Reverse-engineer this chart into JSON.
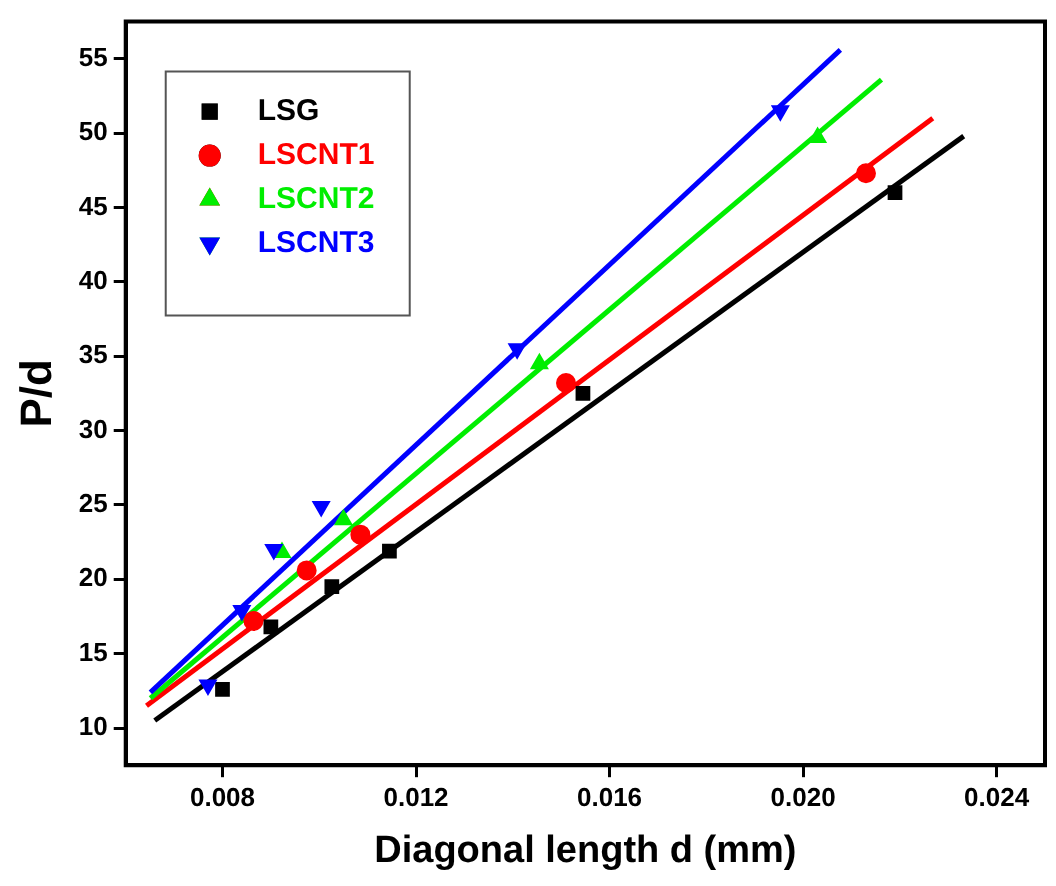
{
  "chart_data": {
    "type": "scatter",
    "xlabel": "Diagonal length d (mm)",
    "ylabel": "P/d",
    "xlim": [
      0.006,
      0.025
    ],
    "ylim": [
      7.5,
      57.5
    ],
    "xticks": [
      {
        "value": 0.008,
        "label": "0.008"
      },
      {
        "value": 0.012,
        "label": "0.012"
      },
      {
        "value": 0.016,
        "label": "0.016"
      },
      {
        "value": 0.02,
        "label": "0.020"
      },
      {
        "value": 0.024,
        "label": "0.024"
      }
    ],
    "yticks": [
      10,
      15,
      20,
      25,
      30,
      35,
      40,
      45,
      50,
      55
    ],
    "grid": false,
    "legend": "top left",
    "series": [
      {
        "name": "LSG",
        "color": "#000000",
        "marker": "square",
        "x": [
          0.008,
          0.009,
          0.01026,
          0.01145,
          0.01545,
          0.0219
        ],
        "values": [
          12.6,
          16.8,
          19.5,
          21.9,
          32.5,
          46.0
        ]
      },
      {
        "name": "LSCNT1",
        "color": "#ff0000",
        "marker": "circle",
        "x": [
          0.00864,
          0.00974,
          0.01085,
          0.0151,
          0.0213
        ],
        "values": [
          17.2,
          20.6,
          23.0,
          33.2,
          47.3
        ]
      },
      {
        "name": "LSCNT2",
        "color": "#00ee00",
        "marker": "triangle",
        "x": [
          0.00923,
          0.0105,
          0.01455,
          0.0203
        ],
        "values": [
          21.8,
          24.0,
          34.5,
          49.7
        ]
      },
      {
        "name": "LSCNT3",
        "color": "#0000ff",
        "marker": "triangle-down",
        "x": [
          0.0077,
          0.0084,
          0.00906,
          0.01004,
          0.01409,
          0.01953
        ],
        "values": [
          12.9,
          17.9,
          22.0,
          24.9,
          35.5,
          51.5
        ]
      },
      {
        "type": "line",
        "color": "#000000",
        "marker": "none",
        "x": [
          0.0066,
          0.02332
        ],
        "values": [
          10.5,
          49.8
        ]
      },
      {
        "type": "line",
        "color": "#ff0000",
        "marker": "none",
        "x": [
          0.00643,
          0.02268
        ],
        "values": [
          11.5,
          51.0
        ]
      },
      {
        "type": "line",
        "color": "#00ee00",
        "marker": "none",
        "x": [
          0.00651,
          0.02162
        ],
        "values": [
          12.0,
          53.6
        ]
      },
      {
        "type": "line",
        "color": "#0000ff",
        "marker": "none",
        "x": [
          0.00651,
          0.02077
        ],
        "values": [
          12.4,
          55.6
        ]
      }
    ]
  }
}
